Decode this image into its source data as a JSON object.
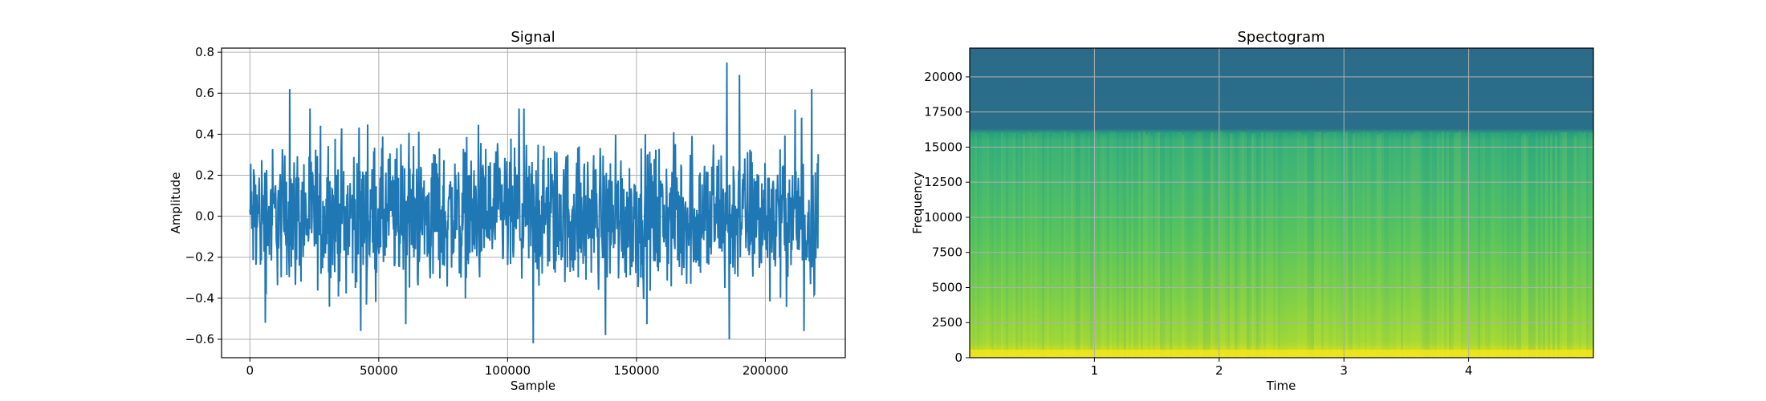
{
  "chart_data": [
    {
      "type": "line",
      "title": "Signal",
      "xlabel": "Sample",
      "ylabel": "Amplitude",
      "xlim": [
        -11000,
        231000
      ],
      "ylim": [
        -0.69,
        0.82
      ],
      "xticks": [
        0,
        50000,
        100000,
        150000,
        200000
      ],
      "yticks": [
        -0.6,
        -0.4,
        -0.2,
        0.0,
        0.2,
        0.4,
        0.6,
        0.8
      ],
      "xtick_labels": [
        "0",
        "50000",
        "100000",
        "150000",
        "200000"
      ],
      "ytick_labels": [
        "−0.6",
        "−0.4",
        "−0.2",
        "0.0",
        "0.2",
        "0.4",
        "0.6",
        "0.8"
      ],
      "grid": true,
      "series": [
        {
          "color": "#1f77b4",
          "x_range": [
            0,
            220500
          ],
          "amplitude_range": [
            -0.62,
            0.75
          ],
          "peaks": [
            {
              "x": 15500,
              "y": 0.62
            },
            {
              "x": 185000,
              "y": 0.75
            },
            {
              "x": 190000,
              "y": 0.69
            },
            {
              "x": 218000,
              "y": 0.62
            }
          ],
          "troughs": [
            {
              "x": 6000,
              "y": -0.52
            },
            {
              "x": 43000,
              "y": -0.56
            },
            {
              "x": 110000,
              "y": -0.62
            },
            {
              "x": 138000,
              "y": -0.58
            },
            {
              "x": 186000,
              "y": -0.6
            },
            {
              "x": 215000,
              "y": -0.56
            }
          ]
        }
      ]
    },
    {
      "type": "heatmap",
      "title": "Spectogram",
      "xlabel": "Time",
      "ylabel": "Frequency",
      "xlim": [
        0,
        5
      ],
      "ylim": [
        0,
        22050
      ],
      "xticks": [
        1,
        2,
        3,
        4
      ],
      "yticks": [
        0,
        2500,
        5000,
        7500,
        10000,
        12500,
        15000,
        17500,
        20000
      ],
      "xtick_labels": [
        "1",
        "2",
        "3",
        "4"
      ],
      "ytick_labels": [
        "0",
        "2500",
        "5000",
        "7500",
        "10000",
        "12500",
        "15000",
        "17500",
        "20000"
      ],
      "grid": true,
      "colormap": "viridis",
      "cutoff_frequency": 16000,
      "colors": {
        "above_cutoff": "#2a6d8a",
        "mid": "#3fb27a",
        "low": "#a6d94a",
        "bottom": "#f0e41e"
      }
    }
  ]
}
